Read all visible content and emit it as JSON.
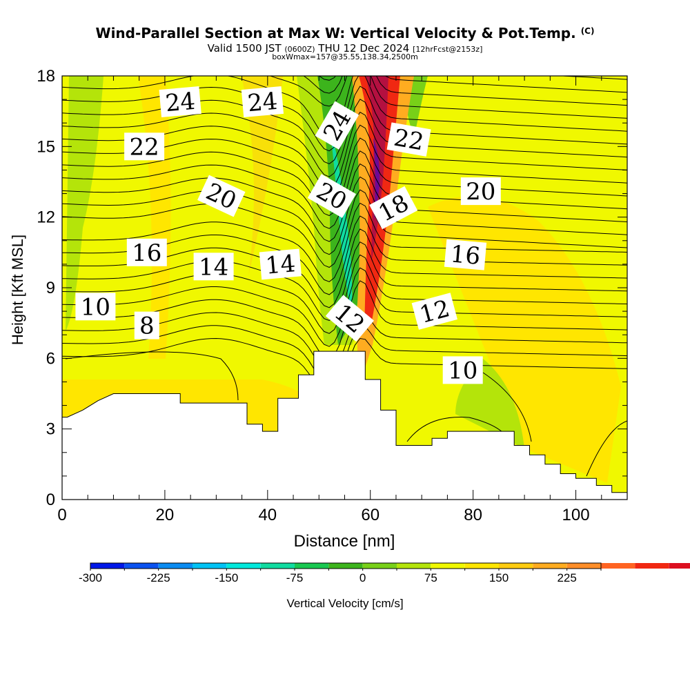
{
  "title": {
    "main": "Wind-Parallel Section at Max W: Vertical Velocity & Pot.Temp.",
    "copyright": "(C)",
    "valid_a": "Valid 1500 JST",
    "valid_z": "(0600Z)",
    "valid_b": "THU 12 Dec 2024",
    "fcst": "[12hrFcst@2153z]",
    "box": "boxWmax=157@35.55,138.34,2500m"
  },
  "chart_data": {
    "type": "heatmap",
    "xlabel": "Distance [nm]",
    "ylabel": "Height [Kft MSL]",
    "xlim": [
      0,
      110
    ],
    "ylim": [
      0,
      18
    ],
    "x_ticks": [
      0,
      20,
      40,
      60,
      80,
      100
    ],
    "y_ticks": [
      0,
      3,
      6,
      9,
      12,
      15,
      18
    ],
    "colorbar": {
      "label": "Vertical Velocity [cm/s]",
      "min": -300,
      "max": 262.5,
      "step": 37.5,
      "tick_values": [
        -300,
        -225,
        -150,
        -75,
        0,
        75,
        150,
        225
      ],
      "tick_labels": [
        "-300",
        "-225",
        "-150",
        "-75",
        "0",
        "75",
        "150",
        "225"
      ],
      "colors": [
        "#0018e8",
        "#0a52f0",
        "#0a8cf2",
        "#00c2f4",
        "#00e8dc",
        "#10dca0",
        "#18c850",
        "#3cb41c",
        "#78d018",
        "#b4e40a",
        "#f0f800",
        "#ffe600",
        "#ffcc10",
        "#ffac20",
        "#ff8e28",
        "#ff6422",
        "#f02812",
        "#dc1020",
        "#b41040",
        "#8c0c64",
        "#6e0896"
      ]
    },
    "terrain_kft": [
      [
        0,
        3.5
      ],
      [
        1,
        3.5
      ],
      [
        4,
        3.8
      ],
      [
        7,
        4.2
      ],
      [
        10,
        4.5
      ],
      [
        23,
        4.5
      ],
      [
        23,
        4.1
      ],
      [
        36,
        4.1
      ],
      [
        36,
        3.2
      ],
      [
        39,
        3.2
      ],
      [
        39,
        2.9
      ],
      [
        42,
        2.9
      ],
      [
        42,
        4.3
      ],
      [
        46,
        4.3
      ],
      [
        46,
        5.3
      ],
      [
        49,
        5.3
      ],
      [
        49,
        6.3
      ],
      [
        59,
        6.3
      ],
      [
        59,
        5.1
      ],
      [
        62,
        5.1
      ],
      [
        62,
        3.8
      ],
      [
        65,
        3.8
      ],
      [
        65,
        2.3
      ],
      [
        72,
        2.3
      ],
      [
        72,
        2.6
      ],
      [
        75,
        2.6
      ],
      [
        75,
        2.9
      ],
      [
        88,
        2.9
      ],
      [
        88,
        2.3
      ],
      [
        91,
        2.3
      ],
      [
        91,
        1.9
      ],
      [
        94,
        1.9
      ],
      [
        94,
        1.5
      ],
      [
        97,
        1.5
      ],
      [
        97,
        1.1
      ],
      [
        100,
        1.1
      ],
      [
        100,
        0.9
      ],
      [
        104,
        0.9
      ],
      [
        104,
        0.6
      ],
      [
        107,
        0.6
      ],
      [
        107,
        0.3
      ],
      [
        110,
        0.3
      ]
    ],
    "pot_temp_labels": [
      {
        "text": "24",
        "x": 23,
        "y": 16.9,
        "rot": -5
      },
      {
        "text": "24",
        "x": 39,
        "y": 16.9,
        "rot": -5
      },
      {
        "text": "24",
        "x": 53.5,
        "y": 15.9,
        "rot": -60
      },
      {
        "text": "22",
        "x": 16,
        "y": 15.0,
        "rot": 0
      },
      {
        "text": "22",
        "x": 67.5,
        "y": 15.3,
        "rot": 10
      },
      {
        "text": "20",
        "x": 31,
        "y": 12.9,
        "rot": 25
      },
      {
        "text": "20",
        "x": 52.5,
        "y": 12.9,
        "rot": 30
      },
      {
        "text": "18",
        "x": 64.5,
        "y": 12.4,
        "rot": -28
      },
      {
        "text": "20",
        "x": 81.5,
        "y": 13.1,
        "rot": 0
      },
      {
        "text": "16",
        "x": 16.5,
        "y": 10.5,
        "rot": 0
      },
      {
        "text": "14",
        "x": 29.5,
        "y": 9.9,
        "rot": 0
      },
      {
        "text": "14",
        "x": 42.5,
        "y": 10.0,
        "rot": -5
      },
      {
        "text": "16",
        "x": 78.5,
        "y": 10.4,
        "rot": 5
      },
      {
        "text": "10",
        "x": 6.5,
        "y": 8.2,
        "rot": 0
      },
      {
        "text": "8",
        "x": 16.5,
        "y": 7.4,
        "rot": 0
      },
      {
        "text": "12",
        "x": 56,
        "y": 7.7,
        "rot": 40
      },
      {
        "text": "12",
        "x": 72.5,
        "y": 8.0,
        "rot": -15
      },
      {
        "text": "10",
        "x": 78,
        "y": 5.5,
        "rot": 0
      }
    ]
  }
}
